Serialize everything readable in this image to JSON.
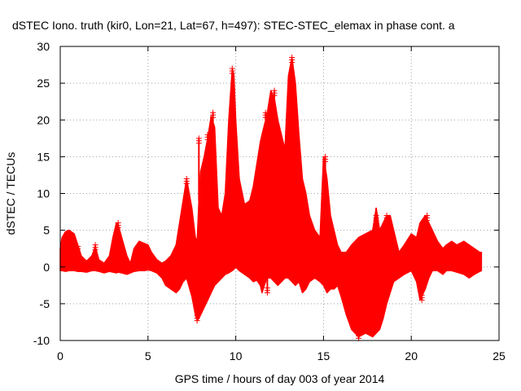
{
  "chart_data": {
    "type": "scatter",
    "title": "dSTEC Iono. truth (kir0, Lon=21, Lat=67, h=497): STEC-STEC_elemax in phase cont. a",
    "xlabel": "GPS time / hours of day 003 of year 2014",
    "ylabel": "dSTEC  / TECUs",
    "xlim": [
      0,
      25
    ],
    "ylim": [
      -10,
      30
    ],
    "xticks": [
      0,
      5,
      10,
      15,
      20,
      25
    ],
    "yticks": [
      -10,
      -5,
      0,
      5,
      10,
      15,
      20,
      25,
      30
    ],
    "grid": true,
    "marker": "plus",
    "series": [
      {
        "color": "#ff0000",
        "envelope": {
          "x": [
            0,
            0.1,
            0.3,
            0.5,
            0.8,
            1.0,
            1.2,
            1.5,
            1.8,
            2.0,
            2.2,
            2.5,
            2.8,
            3.0,
            3.2,
            3.3,
            3.5,
            3.8,
            4.0,
            4.2,
            4.5,
            4.8,
            5.0,
            5.2,
            5.5,
            5.8,
            6.0,
            6.3,
            6.6,
            6.8,
            7.0,
            7.2,
            7.5,
            7.7,
            7.8,
            7.9,
            8.0,
            8.2,
            8.4,
            8.6,
            8.8,
            9.0,
            9.2,
            9.4,
            9.6,
            9.8,
            9.9,
            10.0,
            10.2,
            10.5,
            10.8,
            11.0,
            11.2,
            11.4,
            11.5,
            11.7,
            11.8,
            12.0,
            12.2,
            12.4,
            12.6,
            12.8,
            13.0,
            13.2,
            13.4,
            13.6,
            13.8,
            14.0,
            14.2,
            14.5,
            14.8,
            15.0,
            15.2,
            15.4,
            15.6,
            15.8,
            16.0,
            16.3,
            16.6,
            17.0,
            17.4,
            17.8,
            18.0,
            18.2,
            18.4,
            18.6,
            18.8,
            19.0,
            19.3,
            19.6,
            20.0,
            20.3,
            20.5,
            20.8,
            21.0,
            21.2,
            21.5,
            21.8,
            22.0,
            22.3,
            22.6,
            23.0,
            23.3,
            23.6,
            23.9,
            24.0
          ],
          "upper": [
            2.5,
            4.0,
            4.8,
            5.0,
            4.5,
            3.0,
            1.5,
            0.8,
            1.5,
            2.8,
            1.0,
            0.5,
            1.5,
            4.0,
            6.0,
            5.8,
            4.0,
            1.5,
            0.5,
            2.5,
            3.5,
            3.2,
            3.0,
            2.0,
            1.0,
            0.5,
            0.8,
            1.5,
            3.0,
            6.0,
            9.0,
            12.0,
            8.0,
            4.0,
            3.5,
            9.0,
            13.0,
            15.0,
            17.5,
            20.5,
            19.0,
            8.0,
            7.0,
            10.0,
            20.0,
            27.0,
            26.0,
            20.0,
            12.0,
            8.5,
            9.0,
            11.0,
            14.0,
            17.0,
            18.0,
            20.0,
            21.0,
            24.0,
            23.0,
            20.0,
            18.0,
            16.0,
            26.0,
            28.5,
            25.0,
            18.0,
            12.0,
            10.0,
            7.0,
            5.0,
            4.0,
            15.0,
            12.0,
            7.0,
            5.0,
            3.0,
            2.0,
            2.0,
            3.0,
            4.0,
            4.5,
            5.0,
            8.0,
            5.0,
            6.0,
            7.0,
            7.0,
            5.0,
            2.0,
            3.0,
            4.5,
            4.0,
            6.0,
            7.0,
            6.0,
            5.0,
            3.5,
            2.5,
            3.0,
            3.5,
            3.0,
            3.5,
            3.0,
            2.5,
            2.0,
            2.0
          ],
          "lower": [
            -0.5,
            -0.5,
            -0.6,
            -0.5,
            -0.5,
            -0.6,
            -0.6,
            -0.7,
            -0.5,
            -0.5,
            -0.6,
            -0.8,
            -0.6,
            -0.7,
            -0.8,
            -0.7,
            -0.8,
            -1.0,
            -0.8,
            -0.6,
            -0.5,
            -0.5,
            -0.4,
            -0.5,
            -0.8,
            -1.5,
            -2.5,
            -3.0,
            -3.5,
            -3.0,
            -2.0,
            -1.5,
            -4.0,
            -6.5,
            -7.3,
            -7.0,
            -6.5,
            -5.5,
            -4.5,
            -3.5,
            -2.5,
            -2.0,
            -1.5,
            -1.0,
            -0.8,
            -0.5,
            -0.3,
            0.0,
            -0.5,
            -1.0,
            -1.5,
            -2.0,
            -1.8,
            -2.5,
            -3.5,
            -2.0,
            -1.5,
            -1.5,
            -2.0,
            -2.5,
            -2.0,
            -1.5,
            -1.5,
            -2.0,
            -2.5,
            -2.0,
            -3.5,
            -3.0,
            -2.0,
            -1.5,
            -2.0,
            -2.5,
            -3.5,
            -3.0,
            -3.0,
            -2.5,
            -4.0,
            -6.5,
            -8.5,
            -9.5,
            -9.0,
            -9.5,
            -9.0,
            -8.5,
            -7.0,
            -5.0,
            -3.5,
            -2.0,
            -1.5,
            -1.0,
            -0.5,
            -2.0,
            -4.5,
            -3.0,
            -1.5,
            -0.5,
            -0.5,
            -1.0,
            -0.5,
            -0.5,
            -0.7,
            -1.0,
            -1.5,
            -1.0,
            -0.6,
            -0.5
          ]
        },
        "spikes": [
          {
            "x": 1.0,
            "y": 2.8
          },
          {
            "x": 2.0,
            "y": 3.0
          },
          {
            "x": 3.3,
            "y": 6.0
          },
          {
            "x": 7.2,
            "y": 12.0
          },
          {
            "x": 7.9,
            "y": 17.5
          },
          {
            "x": 8.4,
            "y": 18.0
          },
          {
            "x": 8.7,
            "y": 21.0
          },
          {
            "x": 9.8,
            "y": 27.0
          },
          {
            "x": 10.2,
            "y": 9.0
          },
          {
            "x": 11.7,
            "y": 21.0
          },
          {
            "x": 12.2,
            "y": 24.0
          },
          {
            "x": 13.2,
            "y": 28.5
          },
          {
            "x": 15.1,
            "y": 15.0
          },
          {
            "x": 18.0,
            "y": 7.0
          },
          {
            "x": 18.6,
            "y": 7.0
          },
          {
            "x": 20.9,
            "y": 7.0
          },
          {
            "x": 11.8,
            "y": -3.5
          },
          {
            "x": 7.8,
            "y": -7.3
          },
          {
            "x": 17.0,
            "y": -9.7
          },
          {
            "x": 20.6,
            "y": -4.5
          }
        ]
      }
    ]
  }
}
